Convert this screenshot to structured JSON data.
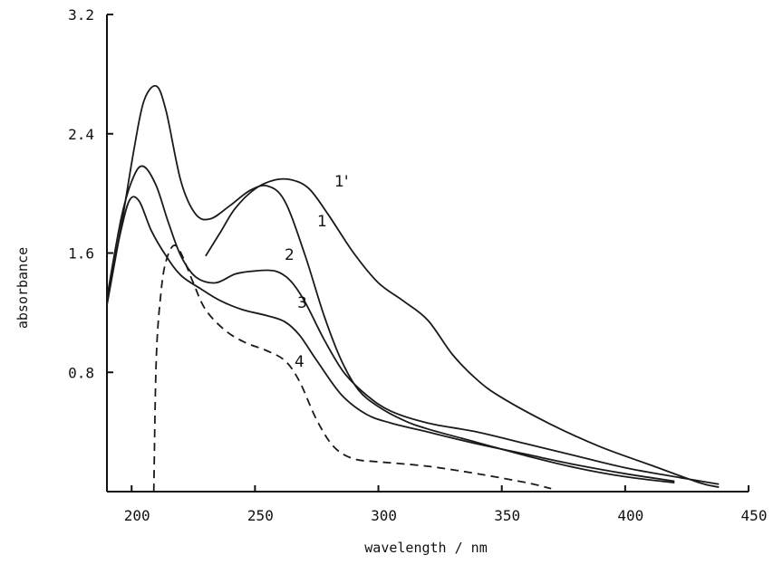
{
  "chart_data": {
    "type": "line",
    "title": "",
    "xlabel": "wavelength / nm",
    "ylabel": "absorbance",
    "xlim": [
      190,
      450
    ],
    "ylim": [
      0,
      3.2
    ],
    "x_ticks": [
      200,
      250,
      300,
      350,
      400,
      450
    ],
    "y_ticks": [
      0.8,
      1.6,
      2.4,
      3.2
    ],
    "grid": false,
    "legend": "none",
    "line_color": "#1a1a1a",
    "series": [
      {
        "label": "1'",
        "dashed": false,
        "points": [
          [
            230,
            1.58
          ],
          [
            236,
            1.74
          ],
          [
            242,
            1.9
          ],
          [
            250,
            2.03
          ],
          [
            258,
            2.09
          ],
          [
            265,
            2.09
          ],
          [
            272,
            2.03
          ],
          [
            280,
            1.85
          ],
          [
            290,
            1.6
          ],
          [
            300,
            1.4
          ],
          [
            310,
            1.28
          ],
          [
            320,
            1.15
          ],
          [
            330,
            0.92
          ],
          [
            340,
            0.75
          ],
          [
            350,
            0.63
          ],
          [
            370,
            0.45
          ],
          [
            390,
            0.3
          ],
          [
            410,
            0.18
          ],
          [
            430,
            0.06
          ],
          [
            438,
            0.03
          ]
        ]
      },
      {
        "label": "1",
        "dashed": false,
        "points": [
          [
            190,
            1.25
          ],
          [
            196,
            1.8
          ],
          [
            201,
            2.3
          ],
          [
            205,
            2.62
          ],
          [
            210,
            2.72
          ],
          [
            214,
            2.55
          ],
          [
            220,
            2.08
          ],
          [
            226,
            1.86
          ],
          [
            232,
            1.83
          ],
          [
            240,
            1.92
          ],
          [
            248,
            2.02
          ],
          [
            255,
            2.05
          ],
          [
            262,
            1.95
          ],
          [
            270,
            1.6
          ],
          [
            278,
            1.18
          ],
          [
            285,
            0.88
          ],
          [
            292,
            0.68
          ],
          [
            300,
            0.57
          ],
          [
            310,
            0.48
          ],
          [
            320,
            0.42
          ],
          [
            340,
            0.33
          ],
          [
            360,
            0.24
          ],
          [
            380,
            0.16
          ],
          [
            400,
            0.1
          ],
          [
            420,
            0.06
          ]
        ]
      },
      {
        "label": "2",
        "dashed": false,
        "points": [
          [
            190,
            1.3
          ],
          [
            196,
            1.85
          ],
          [
            201,
            2.12
          ],
          [
            205,
            2.18
          ],
          [
            210,
            2.05
          ],
          [
            215,
            1.8
          ],
          [
            220,
            1.58
          ],
          [
            226,
            1.44
          ],
          [
            234,
            1.4
          ],
          [
            242,
            1.46
          ],
          [
            250,
            1.48
          ],
          [
            258,
            1.48
          ],
          [
            264,
            1.42
          ],
          [
            270,
            1.28
          ],
          [
            278,
            1.02
          ],
          [
            286,
            0.8
          ],
          [
            295,
            0.65
          ],
          [
            305,
            0.54
          ],
          [
            320,
            0.46
          ],
          [
            340,
            0.4
          ],
          [
            360,
            0.32
          ],
          [
            380,
            0.24
          ],
          [
            400,
            0.16
          ],
          [
            420,
            0.1
          ],
          [
            438,
            0.05
          ]
        ]
      },
      {
        "label": "3",
        "dashed": false,
        "points": [
          [
            190,
            1.3
          ],
          [
            195,
            1.7
          ],
          [
            199,
            1.95
          ],
          [
            203,
            1.95
          ],
          [
            208,
            1.75
          ],
          [
            214,
            1.58
          ],
          [
            220,
            1.45
          ],
          [
            228,
            1.36
          ],
          [
            236,
            1.28
          ],
          [
            245,
            1.22
          ],
          [
            255,
            1.18
          ],
          [
            262,
            1.14
          ],
          [
            268,
            1.05
          ],
          [
            275,
            0.88
          ],
          [
            285,
            0.65
          ],
          [
            295,
            0.52
          ],
          [
            305,
            0.46
          ],
          [
            320,
            0.4
          ],
          [
            340,
            0.32
          ],
          [
            360,
            0.25
          ],
          [
            380,
            0.18
          ],
          [
            400,
            0.12
          ],
          [
            420,
            0.07
          ]
        ]
      },
      {
        "label": "4",
        "dashed": true,
        "points": [
          [
            209,
            0.0
          ],
          [
            210,
            0.9
          ],
          [
            212,
            1.35
          ],
          [
            214,
            1.55
          ],
          [
            217,
            1.65
          ],
          [
            220,
            1.6
          ],
          [
            225,
            1.4
          ],
          [
            230,
            1.22
          ],
          [
            238,
            1.08
          ],
          [
            246,
            1.0
          ],
          [
            254,
            0.95
          ],
          [
            262,
            0.88
          ],
          [
            268,
            0.74
          ],
          [
            275,
            0.48
          ],
          [
            282,
            0.3
          ],
          [
            290,
            0.22
          ],
          [
            300,
            0.2
          ],
          [
            320,
            0.17
          ],
          [
            340,
            0.12
          ],
          [
            360,
            0.06
          ],
          [
            370,
            0.02
          ]
        ]
      }
    ]
  }
}
